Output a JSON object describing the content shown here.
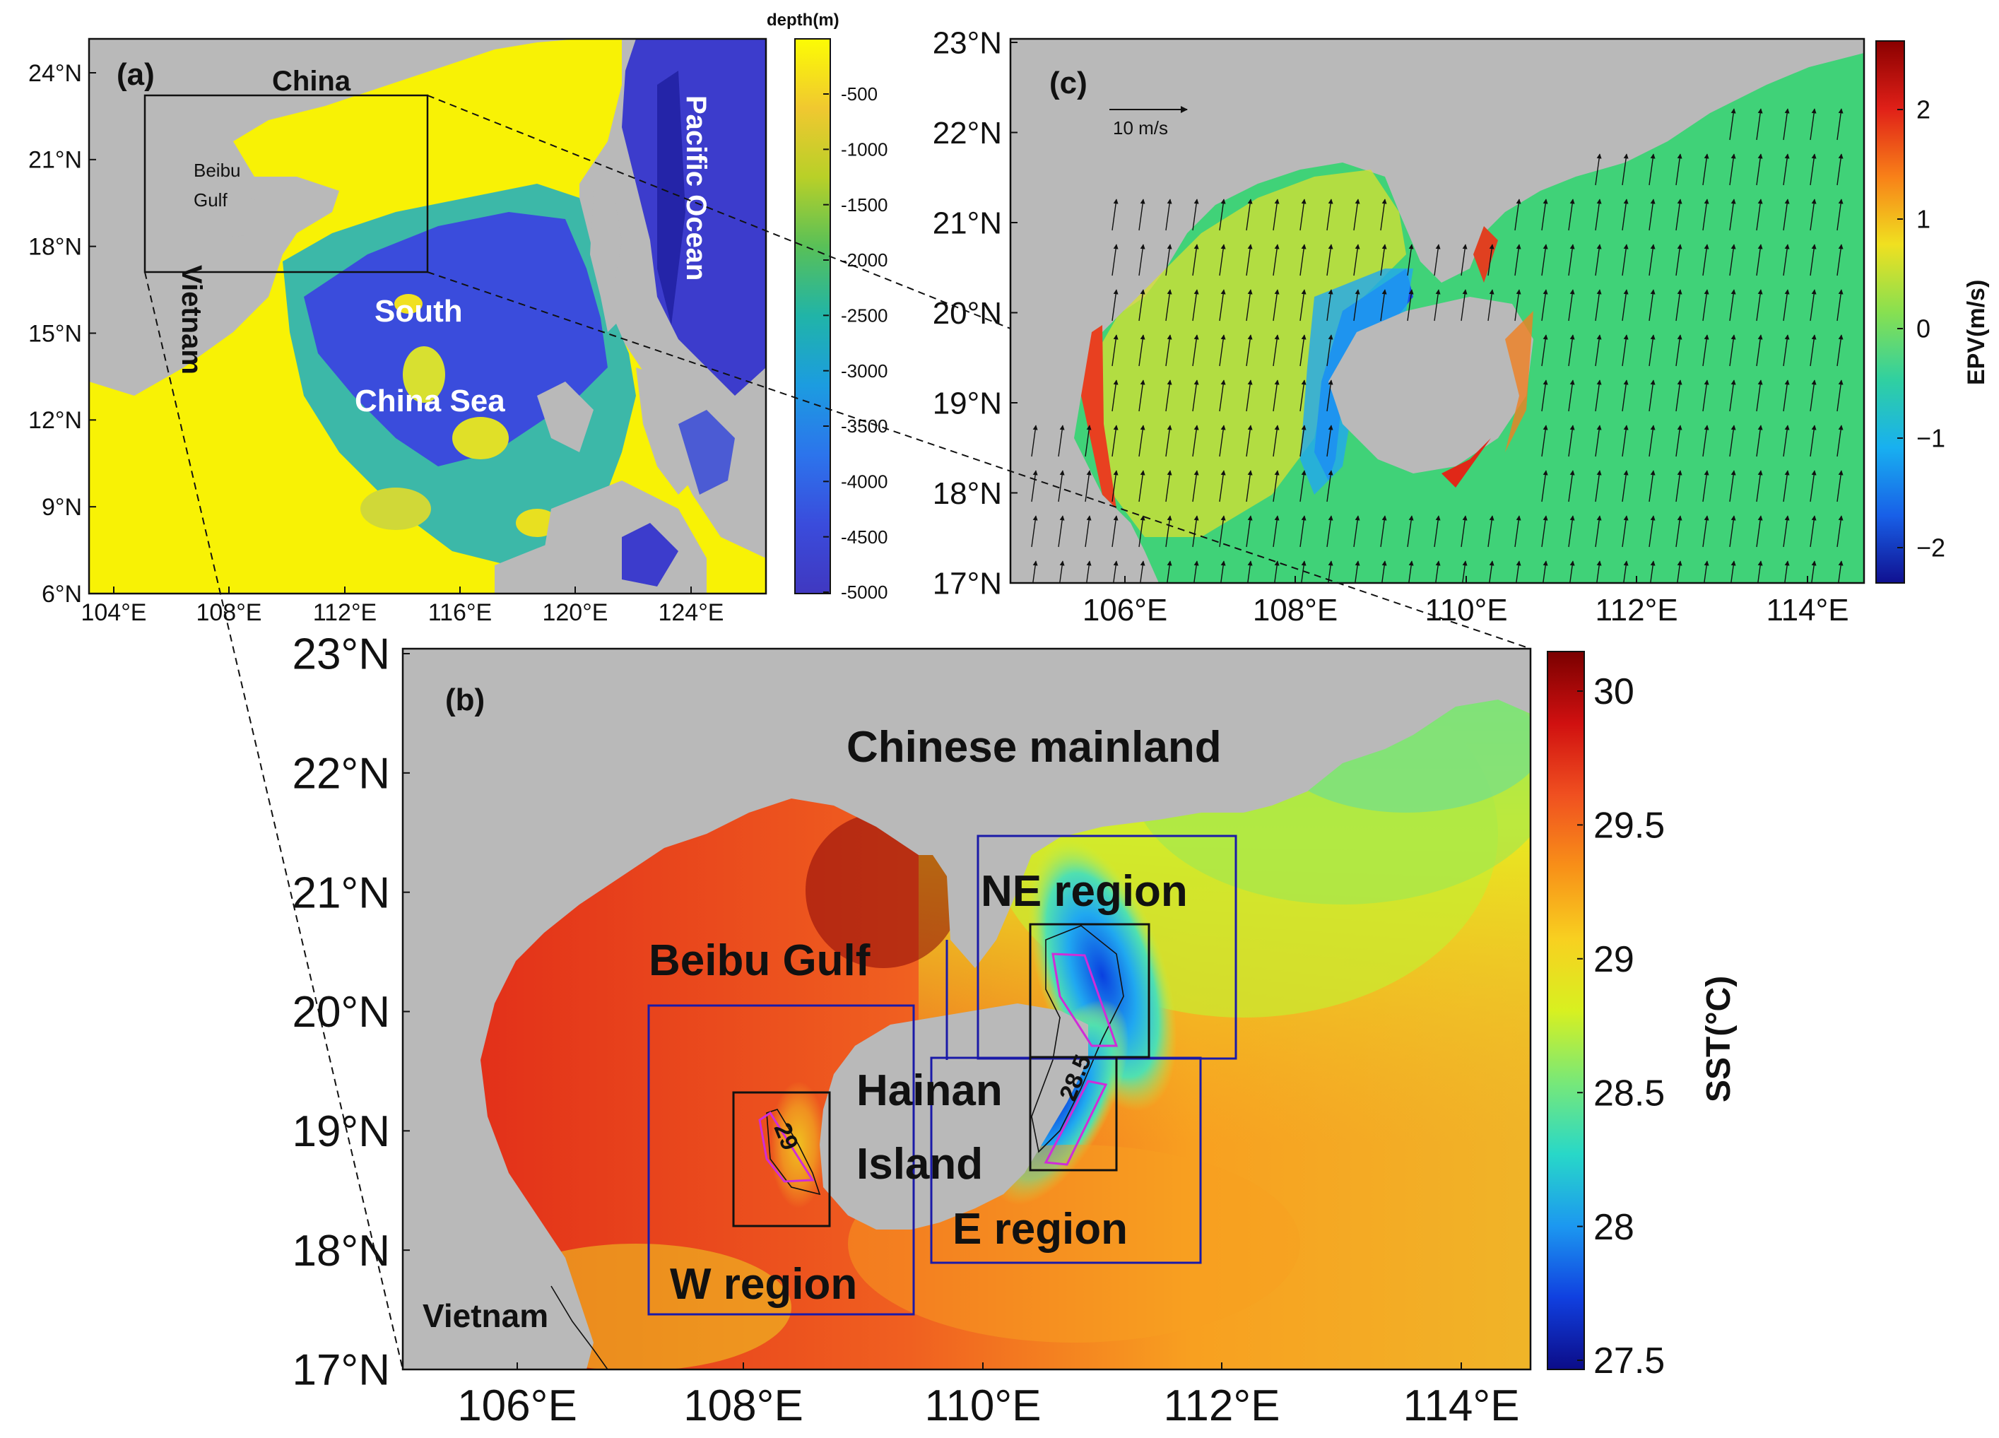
{
  "panel_a": {
    "label": "(a)",
    "lat_ticks": [
      "24°N",
      "21°N",
      "18°N",
      "15°N",
      "12°N",
      "9°N",
      "6°N"
    ],
    "lon_ticks": [
      "104°E",
      "108°E",
      "112°E",
      "116°E",
      "120°E",
      "124°E"
    ],
    "places": {
      "china": "China",
      "beibu_gulf_1": "Beibu",
      "beibu_gulf_2": "Gulf",
      "vietnam": "Vietnam",
      "scs_1": "South",
      "scs_2": "China Sea",
      "pacific": "Pacific Ocean"
    },
    "colorbar": {
      "title": "depth(m)",
      "ticks": [
        "-500",
        "-1000",
        "-1500",
        "-2000",
        "-2500",
        "-3000",
        "-3500",
        "-4000",
        "-4500",
        "-5000"
      ],
      "colors": [
        "#fcfc04",
        "#f0c830",
        "#b8d028",
        "#58c058",
        "#20b4a8",
        "#1c9ce0",
        "#2c74ec",
        "#3a4cdc",
        "#4038c0"
      ]
    },
    "colors": {
      "land": "#b9b9b9",
      "shelf": "#f8f205",
      "deep": "#3c3ccc"
    }
  },
  "panel_b": {
    "label": "(b)",
    "lat_ticks": [
      "23°N",
      "22°N",
      "21°N",
      "20°N",
      "19°N",
      "18°N",
      "17°N"
    ],
    "lon_ticks": [
      "106°E",
      "108°E",
      "110°E",
      "112°E",
      "114°E"
    ],
    "places": {
      "mainland": "Chinese mainland",
      "beibu": "Beibu Gulf",
      "hainan_1": "Hainan",
      "hainan_2": "Island",
      "vietnam": "Vietnam"
    },
    "regions": {
      "ne": "NE region",
      "e": "E region",
      "w": "W region"
    },
    "contours": {
      "west": "29",
      "east": "28.5"
    },
    "colorbar": {
      "title": "SST(°C)",
      "ticks": [
        "30",
        "29.5",
        "29",
        "28.5",
        "28",
        "27.5"
      ],
      "colors": [
        "#7a0000",
        "#d01010",
        "#f05020",
        "#f89018",
        "#f8d020",
        "#d8f020",
        "#78e878",
        "#28d8c8",
        "#1c98f0",
        "#1040e0",
        "#0c0c88"
      ]
    },
    "colors": {
      "land": "#b9b9b9",
      "warm": "#e02818",
      "box": "#1a1aa8",
      "highlight": "#d02cd8"
    }
  },
  "panel_c": {
    "label": "(c)",
    "lat_ticks": [
      "23°N",
      "22°N",
      "21°N",
      "20°N",
      "19°N",
      "18°N",
      "17°N"
    ],
    "lon_ticks": [
      "106°E",
      "108°E",
      "110°E",
      "112°E",
      "114°E"
    ],
    "scale_label": "10 m/s",
    "colorbar": {
      "title": "EPV(m/s)",
      "ticks": [
        "2",
        "1",
        "0",
        "−1",
        "−2"
      ],
      "colors": [
        "#8a0000",
        "#e02018",
        "#f88018",
        "#f0e020",
        "#88e050",
        "#30d0a0",
        "#18b0f0",
        "#1860e8",
        "#101090"
      ]
    },
    "colors": {
      "land": "#b9b9b9",
      "sea": "#40d278"
    }
  }
}
